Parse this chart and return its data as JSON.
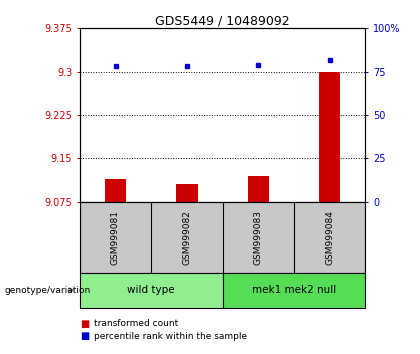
{
  "title": "GDS5449 / 10489092",
  "samples": [
    "GSM999081",
    "GSM999082",
    "GSM999083",
    "GSM999084"
  ],
  "red_values": [
    9.115,
    9.105,
    9.12,
    9.3
  ],
  "blue_values": [
    78.5,
    78.0,
    79.0,
    82.0
  ],
  "ylim_left": [
    9.075,
    9.375
  ],
  "ylim_right": [
    0,
    100
  ],
  "yticks_left": [
    9.075,
    9.15,
    9.225,
    9.3,
    9.375
  ],
  "yticks_right": [
    0,
    25,
    50,
    75,
    100
  ],
  "ytick_labels_right": [
    "0",
    "25",
    "50",
    "75",
    "100%"
  ],
  "groups": [
    {
      "label": "wild type",
      "indices": [
        0,
        1
      ],
      "color": "#90EE90"
    },
    {
      "label": "mek1 mek2 null",
      "indices": [
        2,
        3
      ],
      "color": "#55DD55"
    }
  ],
  "bar_color": "#CC0000",
  "dot_color": "#0000CC",
  "bg_color": "#C8C8C8",
  "plot_bg": "#FFFFFF",
  "title_color": "#000000",
  "left_tick_color": "#CC0000",
  "right_tick_color": "#0000CC",
  "bar_width": 0.3
}
